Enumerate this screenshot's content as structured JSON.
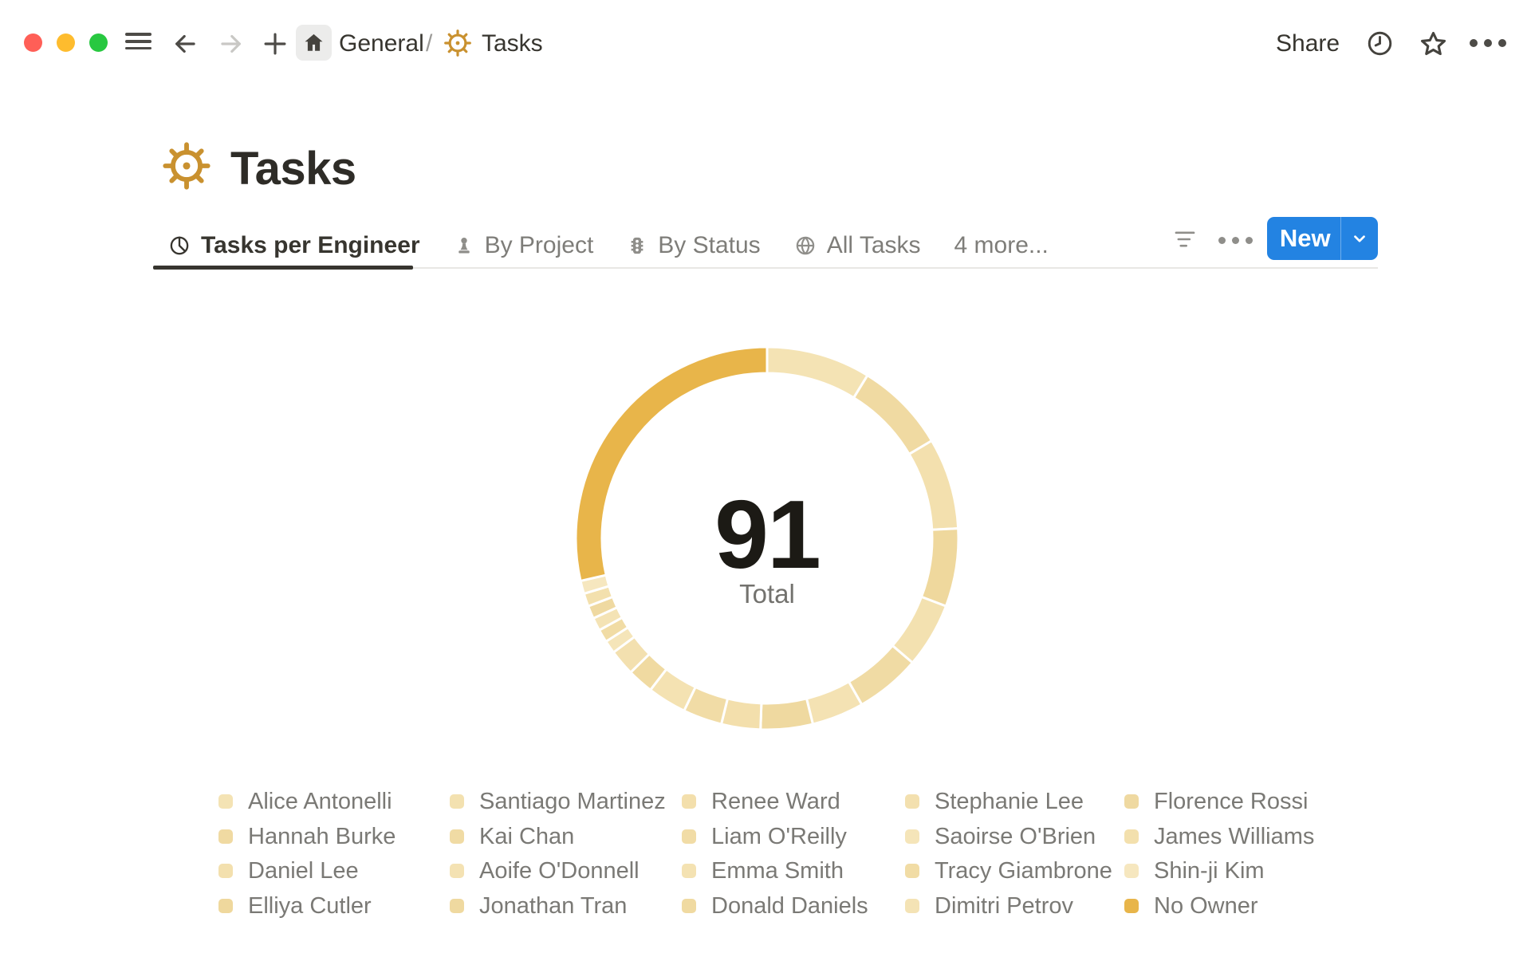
{
  "window": {
    "nav": {
      "back": "back",
      "forward": "forward",
      "new_tab": "new tab",
      "menu": "menu",
      "breadcrumb_root": "General",
      "breadcrumb_separator": "/",
      "breadcrumb_page": "Tasks",
      "share_label": "Share"
    },
    "traffic_lights": {
      "close": "#FF5F57",
      "minimize": "#FEBC2E",
      "zoom": "#28C840"
    }
  },
  "page": {
    "title": "Tasks",
    "icon": "helm-icon",
    "icon_color": "#C9912F"
  },
  "tabs": [
    {
      "label": "Tasks per Engineer",
      "icon": "pie-chart-icon",
      "active": true
    },
    {
      "label": "By Project",
      "icon": "pawn-icon",
      "active": false
    },
    {
      "label": "By Status",
      "icon": "traffic-light-icon",
      "active": false
    },
    {
      "label": "All Tasks",
      "icon": "globe-icon",
      "active": false
    }
  ],
  "more_tabs_label": "4 more...",
  "toolbar": {
    "new_label": "New",
    "accent_color": "#2383E2"
  },
  "chart_data": {
    "type": "donut",
    "title": "Tasks per Engineer",
    "total": 91,
    "center_value": "91",
    "center_label": "Total",
    "start_angle_deg": 0,
    "direction": "clockwise",
    "gap_color": "#FFFFFF",
    "legend_position": "bottom",
    "legend_columns": 5,
    "legend_rows": 4,
    "series": [
      {
        "name": "Alice Antonelli",
        "value": 8,
        "color": "#F4E3B4"
      },
      {
        "name": "Hannah Burke",
        "value": 7,
        "color": "#F0DAA2"
      },
      {
        "name": "Daniel Lee",
        "value": 7,
        "color": "#F3E0AE"
      },
      {
        "name": "Elliya Cutler",
        "value": 6,
        "color": "#EFD89D"
      },
      {
        "name": "Santiago Martinez",
        "value": 5,
        "color": "#F3E1B0"
      },
      {
        "name": "Kai Chan",
        "value": 5,
        "color": "#F0DBA4"
      },
      {
        "name": "Aoife O'Donnell",
        "value": 4,
        "color": "#F4E2B3"
      },
      {
        "name": "Jonathan Tran",
        "value": 4,
        "color": "#EFD9A0"
      },
      {
        "name": "Renee Ward",
        "value": 3,
        "color": "#F3DFAC"
      },
      {
        "name": "Liam O'Reilly",
        "value": 3,
        "color": "#F1DCA6"
      },
      {
        "name": "Emma Smith",
        "value": 3,
        "color": "#F4E2B2"
      },
      {
        "name": "Donald Daniels",
        "value": 2,
        "color": "#F0DAA1"
      },
      {
        "name": "Stephanie Lee",
        "value": 2,
        "color": "#F3E0AF"
      },
      {
        "name": "Saoirse O'Brien",
        "value": 1,
        "color": "#F5E5B9"
      },
      {
        "name": "Tracy Giambrone",
        "value": 1,
        "color": "#F1DCA5"
      },
      {
        "name": "Dimitri Petrov",
        "value": 1,
        "color": "#F4E3B5"
      },
      {
        "name": "Florence Rossi",
        "value": 1,
        "color": "#EFD9A1"
      },
      {
        "name": "James Williams",
        "value": 1,
        "color": "#F3E0AD"
      },
      {
        "name": "Shin-ji Kim",
        "value": 1,
        "color": "#F6E7BF"
      },
      {
        "name": "No Owner",
        "value": 26,
        "color": "#E8B54A"
      }
    ]
  }
}
